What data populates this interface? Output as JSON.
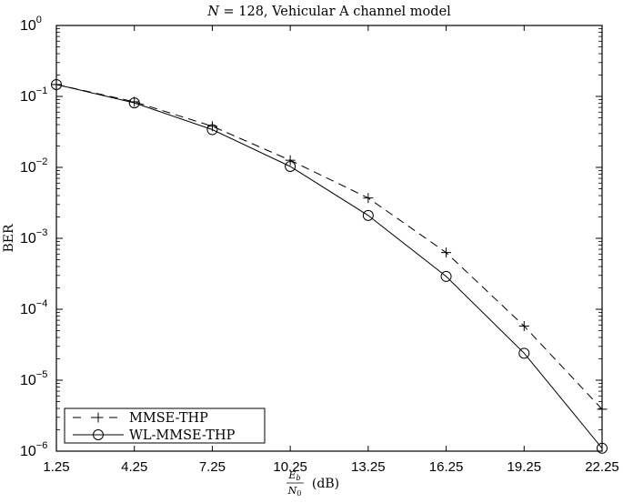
{
  "chart_data": {
    "type": "line",
    "title": "N = 128, Vehicular A channel model",
    "title_italic_part": "N",
    "title_rest": " = 128, Vehicular A channel model",
    "xlabel": "Eb/N0 (dB)",
    "xlabel_num": "E",
    "xlabel_num_sub": "b",
    "xlabel_den": "N",
    "xlabel_den_sub": "0",
    "xlabel_unit": "(dB)",
    "ylabel": "BER",
    "yscale": "log",
    "ylim": [
      1e-06,
      1
    ],
    "xlim": [
      1.25,
      22.25
    ],
    "x": [
      1.25,
      4.25,
      7.25,
      10.25,
      13.25,
      16.25,
      19.25,
      22.25
    ],
    "xticks": [
      "1.25",
      "4.25",
      "7.25",
      "10.25",
      "13.25",
      "16.25",
      "19.25",
      "22.25"
    ],
    "yticks": [
      {
        "base": "10",
        "exp": "0",
        "value": 1
      },
      {
        "base": "10",
        "exp": "−1",
        "value": 0.1
      },
      {
        "base": "10",
        "exp": "−2",
        "value": 0.01
      },
      {
        "base": "10",
        "exp": "−3",
        "value": 0.001
      },
      {
        "base": "10",
        "exp": "−4",
        "value": 0.0001
      },
      {
        "base": "10",
        "exp": "−5",
        "value": 1e-05
      },
      {
        "base": "10",
        "exp": "−6",
        "value": 1e-06
      }
    ],
    "series": [
      {
        "name": "MMSE-THP",
        "style": "dashed",
        "marker": "plus",
        "values": [
          0.147,
          0.084,
          0.038,
          0.0126,
          0.0037,
          0.00063,
          5.8e-05,
          3.9e-06
        ]
      },
      {
        "name": "WL-MMSE-THP",
        "style": "solid",
        "marker": "circle",
        "values": [
          0.147,
          0.081,
          0.034,
          0.0103,
          0.0021,
          0.00029,
          2.4e-05,
          1.1e-06
        ]
      }
    ],
    "grid": false,
    "legend_position": "lower left"
  }
}
